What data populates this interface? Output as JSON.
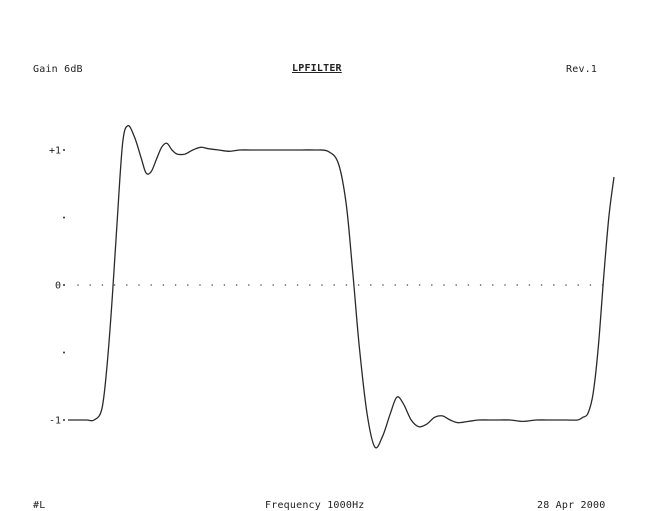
{
  "header": {
    "left": "Gain 6dB",
    "title": "LPFILTER",
    "right": "Rev.1"
  },
  "footer": {
    "left": "#L",
    "center": "Frequency 1000Hz",
    "right": "28 Apr 2000"
  },
  "chart_data": {
    "type": "line",
    "title": "LPFILTER",
    "y_ticks": [
      {
        "value": 1,
        "label": "+1"
      },
      {
        "value": 0.5,
        "label": ""
      },
      {
        "value": 0,
        "label": "0"
      },
      {
        "value": -0.5,
        "label": ""
      },
      {
        "value": -1,
        "label": "-1"
      }
    ],
    "ylim": [
      -1.5,
      1.5
    ],
    "xlim": [
      0,
      21
    ],
    "zero_line": "dotted",
    "series": [
      {
        "x": [
          0,
          0.7,
          1.0,
          1.3,
          1.5,
          1.7,
          1.9,
          2.1,
          2.3,
          2.55,
          2.8,
          3.0,
          3.2,
          3.4,
          3.6,
          3.8,
          4.0,
          4.2,
          4.5,
          4.8,
          5.1,
          5.4,
          5.8,
          6.2,
          6.6,
          7.0,
          7.5,
          8.0,
          8.5,
          9.0,
          9.5,
          10.0,
          10.4,
          10.7,
          10.95,
          11.2,
          11.5,
          11.8,
          12.1,
          12.4,
          12.65,
          12.9,
          13.2,
          13.5,
          13.8,
          14.1,
          14.4,
          14.7,
          15.0,
          15.4,
          15.8,
          16.2,
          16.6,
          17.0,
          17.5,
          18.0,
          18.4,
          18.8,
          19.2,
          19.6,
          19.8,
          20.0,
          20.2,
          20.4,
          20.6,
          20.8,
          21.0
        ],
        "y": [
          -1.0,
          -1.0,
          -1.0,
          -0.92,
          -0.6,
          -0.1,
          0.5,
          1.05,
          1.18,
          1.1,
          0.95,
          0.83,
          0.84,
          0.93,
          1.02,
          1.05,
          1.0,
          0.97,
          0.97,
          1.0,
          1.02,
          1.01,
          1.0,
          0.99,
          1.0,
          1.0,
          1.0,
          1.0,
          1.0,
          1.0,
          1.0,
          0.99,
          0.9,
          0.6,
          0.1,
          -0.45,
          -0.95,
          -1.2,
          -1.12,
          -0.95,
          -0.83,
          -0.88,
          -1.0,
          -1.05,
          -1.03,
          -0.98,
          -0.97,
          -1.0,
          -1.02,
          -1.01,
          -1.0,
          -1.0,
          -1.0,
          -1.0,
          -1.01,
          -1.0,
          -1.0,
          -1.0,
          -1.0,
          -1.0,
          -0.98,
          -0.95,
          -0.8,
          -0.45,
          0.05,
          0.5,
          0.8
        ]
      }
    ]
  }
}
